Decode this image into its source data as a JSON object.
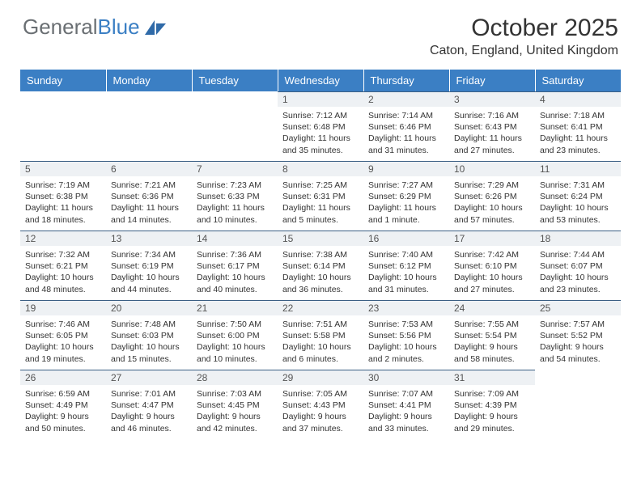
{
  "brand": {
    "part1": "General",
    "part2": "Blue",
    "logo_fill": "#2f6aa8"
  },
  "title": "October 2025",
  "location": "Caton, England, United Kingdom",
  "colors": {
    "header_bg": "#3b7fc4",
    "header_text": "#ffffff",
    "daynum_bg": "#eef1f4",
    "rule": "#3b5f84",
    "body_text": "#333333",
    "brand_gray": "#6a6f73"
  },
  "weekdays": [
    "Sunday",
    "Monday",
    "Tuesday",
    "Wednesday",
    "Thursday",
    "Friday",
    "Saturday"
  ],
  "layout": {
    "cols": 7,
    "rows": 5,
    "leading_blanks": 3
  },
  "days": [
    {
      "n": "1",
      "sr": "7:12 AM",
      "ss": "6:48 PM",
      "dl": "11 hours and 35 minutes."
    },
    {
      "n": "2",
      "sr": "7:14 AM",
      "ss": "6:46 PM",
      "dl": "11 hours and 31 minutes."
    },
    {
      "n": "3",
      "sr": "7:16 AM",
      "ss": "6:43 PM",
      "dl": "11 hours and 27 minutes."
    },
    {
      "n": "4",
      "sr": "7:18 AM",
      "ss": "6:41 PM",
      "dl": "11 hours and 23 minutes."
    },
    {
      "n": "5",
      "sr": "7:19 AM",
      "ss": "6:38 PM",
      "dl": "11 hours and 18 minutes."
    },
    {
      "n": "6",
      "sr": "7:21 AM",
      "ss": "6:36 PM",
      "dl": "11 hours and 14 minutes."
    },
    {
      "n": "7",
      "sr": "7:23 AM",
      "ss": "6:33 PM",
      "dl": "11 hours and 10 minutes."
    },
    {
      "n": "8",
      "sr": "7:25 AM",
      "ss": "6:31 PM",
      "dl": "11 hours and 5 minutes."
    },
    {
      "n": "9",
      "sr": "7:27 AM",
      "ss": "6:29 PM",
      "dl": "11 hours and 1 minute."
    },
    {
      "n": "10",
      "sr": "7:29 AM",
      "ss": "6:26 PM",
      "dl": "10 hours and 57 minutes."
    },
    {
      "n": "11",
      "sr": "7:31 AM",
      "ss": "6:24 PM",
      "dl": "10 hours and 53 minutes."
    },
    {
      "n": "12",
      "sr": "7:32 AM",
      "ss": "6:21 PM",
      "dl": "10 hours and 48 minutes."
    },
    {
      "n": "13",
      "sr": "7:34 AM",
      "ss": "6:19 PM",
      "dl": "10 hours and 44 minutes."
    },
    {
      "n": "14",
      "sr": "7:36 AM",
      "ss": "6:17 PM",
      "dl": "10 hours and 40 minutes."
    },
    {
      "n": "15",
      "sr": "7:38 AM",
      "ss": "6:14 PM",
      "dl": "10 hours and 36 minutes."
    },
    {
      "n": "16",
      "sr": "7:40 AM",
      "ss": "6:12 PM",
      "dl": "10 hours and 31 minutes."
    },
    {
      "n": "17",
      "sr": "7:42 AM",
      "ss": "6:10 PM",
      "dl": "10 hours and 27 minutes."
    },
    {
      "n": "18",
      "sr": "7:44 AM",
      "ss": "6:07 PM",
      "dl": "10 hours and 23 minutes."
    },
    {
      "n": "19",
      "sr": "7:46 AM",
      "ss": "6:05 PM",
      "dl": "10 hours and 19 minutes."
    },
    {
      "n": "20",
      "sr": "7:48 AM",
      "ss": "6:03 PM",
      "dl": "10 hours and 15 minutes."
    },
    {
      "n": "21",
      "sr": "7:50 AM",
      "ss": "6:00 PM",
      "dl": "10 hours and 10 minutes."
    },
    {
      "n": "22",
      "sr": "7:51 AM",
      "ss": "5:58 PM",
      "dl": "10 hours and 6 minutes."
    },
    {
      "n": "23",
      "sr": "7:53 AM",
      "ss": "5:56 PM",
      "dl": "10 hours and 2 minutes."
    },
    {
      "n": "24",
      "sr": "7:55 AM",
      "ss": "5:54 PM",
      "dl": "9 hours and 58 minutes."
    },
    {
      "n": "25",
      "sr": "7:57 AM",
      "ss": "5:52 PM",
      "dl": "9 hours and 54 minutes."
    },
    {
      "n": "26",
      "sr": "6:59 AM",
      "ss": "4:49 PM",
      "dl": "9 hours and 50 minutes."
    },
    {
      "n": "27",
      "sr": "7:01 AM",
      "ss": "4:47 PM",
      "dl": "9 hours and 46 minutes."
    },
    {
      "n": "28",
      "sr": "7:03 AM",
      "ss": "4:45 PM",
      "dl": "9 hours and 42 minutes."
    },
    {
      "n": "29",
      "sr": "7:05 AM",
      "ss": "4:43 PM",
      "dl": "9 hours and 37 minutes."
    },
    {
      "n": "30",
      "sr": "7:07 AM",
      "ss": "4:41 PM",
      "dl": "9 hours and 33 minutes."
    },
    {
      "n": "31",
      "sr": "7:09 AM",
      "ss": "4:39 PM",
      "dl": "9 hours and 29 minutes."
    }
  ],
  "labels": {
    "sunrise": "Sunrise:",
    "sunset": "Sunset:",
    "daylight": "Daylight:"
  }
}
